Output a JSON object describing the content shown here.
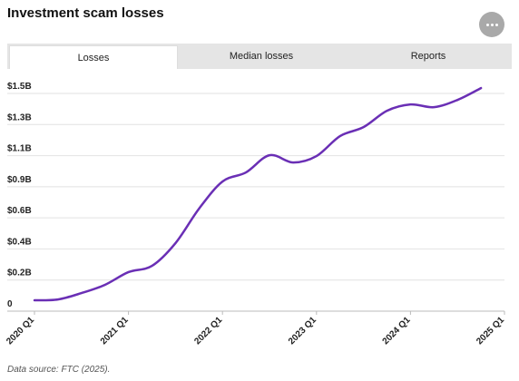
{
  "title": "Investment scam losses",
  "tabs": [
    "Losses",
    "Median losses",
    "Reports"
  ],
  "source": "Data source: FTC (2025).",
  "chart_data": {
    "type": "line",
    "categories": [
      "2020 Q1",
      null,
      null,
      null,
      "2021 Q1",
      null,
      null,
      null,
      "2022 Q1",
      null,
      null,
      null,
      "2023 Q1",
      null,
      null,
      null,
      "2024 Q1",
      null,
      null,
      null,
      "2025 Q1"
    ],
    "series": [
      {
        "name": "Losses",
        "color": "#6a2fb5",
        "values": [
          0.075,
          0.081,
          0.125,
          0.182,
          0.27,
          0.313,
          0.47,
          0.708,
          0.896,
          0.959,
          1.078,
          1.028,
          1.072,
          1.21,
          1.272,
          1.385,
          1.429,
          1.41,
          1.46,
          1.542,
          null
        ]
      }
    ],
    "ylim": [
      0,
      1.505
    ],
    "yticks": [
      0,
      {
        "value": 0.215,
        "label": "$0.2B"
      },
      {
        "value": 0.43,
        "label": "$0.4B"
      },
      {
        "value": 0.645,
        "label": "$0.6B"
      },
      {
        "value": 0.86,
        "label": "$0.9B"
      },
      {
        "value": 1.075,
        "label": "$1.1B"
      },
      {
        "value": 1.29,
        "label": "$1.3B"
      },
      {
        "value": 1.505,
        "label": "$1.5B"
      }
    ],
    "grid": true
  }
}
